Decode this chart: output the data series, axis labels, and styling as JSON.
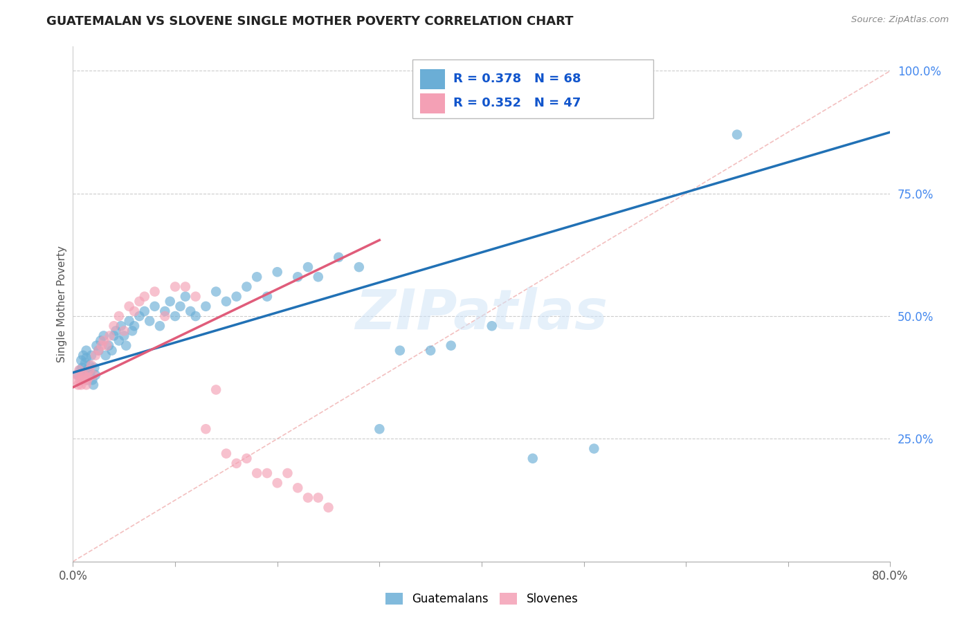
{
  "title": "GUATEMALAN VS SLOVENE SINGLE MOTHER POVERTY CORRELATION CHART",
  "source": "Source: ZipAtlas.com",
  "ylabel": "Single Mother Poverty",
  "xlim": [
    0.0,
    0.8
  ],
  "ylim": [
    0.0,
    1.05
  ],
  "xticks": [
    0.0,
    0.1,
    0.2,
    0.3,
    0.4,
    0.5,
    0.6,
    0.7,
    0.8
  ],
  "xtick_labels": [
    "0.0%",
    "",
    "",
    "",
    "",
    "",
    "",
    "",
    "80.0%"
  ],
  "ytick_labels_right": [
    "25.0%",
    "50.0%",
    "75.0%",
    "100.0%"
  ],
  "yticks_right": [
    0.25,
    0.5,
    0.75,
    1.0
  ],
  "r_guatemalan": 0.378,
  "n_guatemalan": 68,
  "r_slovene": 0.352,
  "n_slovene": 47,
  "color_guatemalan": "#6baed6",
  "color_slovene": "#f4a0b5",
  "color_trend_guatemalan": "#2171b5",
  "color_trend_slovene": "#e05c7a",
  "background_color": "#ffffff",
  "grid_color": "#cccccc",
  "legend_label_guatemalan": "Guatemalans",
  "legend_label_slovene": "Slovenes",
  "diag_line_color": "#f0b0b0",
  "watermark_color": "#d0e4f7",
  "blue_trend_x0": 0.0,
  "blue_trend_y0": 0.385,
  "blue_trend_x1": 0.8,
  "blue_trend_y1": 0.875,
  "pink_trend_x0": 0.0,
  "pink_trend_y0": 0.355,
  "pink_trend_x1": 0.3,
  "pink_trend_y1": 0.655,
  "guat_x": [
    0.005,
    0.007,
    0.008,
    0.009,
    0.01,
    0.01,
    0.011,
    0.012,
    0.013,
    0.013,
    0.014,
    0.015,
    0.016,
    0.017,
    0.018,
    0.019,
    0.02,
    0.021,
    0.022,
    0.023,
    0.025,
    0.027,
    0.03,
    0.032,
    0.035,
    0.038,
    0.04,
    0.042,
    0.045,
    0.047,
    0.05,
    0.052,
    0.055,
    0.058,
    0.06,
    0.065,
    0.07,
    0.075,
    0.08,
    0.085,
    0.09,
    0.095,
    0.1,
    0.105,
    0.11,
    0.115,
    0.12,
    0.13,
    0.14,
    0.15,
    0.16,
    0.17,
    0.18,
    0.19,
    0.2,
    0.22,
    0.23,
    0.24,
    0.26,
    0.28,
    0.3,
    0.32,
    0.35,
    0.37,
    0.41,
    0.45,
    0.51,
    0.65
  ],
  "guat_y": [
    0.38,
    0.39,
    0.41,
    0.395,
    0.385,
    0.42,
    0.375,
    0.405,
    0.415,
    0.43,
    0.37,
    0.39,
    0.4,
    0.38,
    0.42,
    0.37,
    0.36,
    0.395,
    0.38,
    0.44,
    0.43,
    0.45,
    0.46,
    0.42,
    0.44,
    0.43,
    0.46,
    0.47,
    0.45,
    0.48,
    0.46,
    0.44,
    0.49,
    0.47,
    0.48,
    0.5,
    0.51,
    0.49,
    0.52,
    0.48,
    0.51,
    0.53,
    0.5,
    0.52,
    0.54,
    0.51,
    0.5,
    0.52,
    0.55,
    0.53,
    0.54,
    0.56,
    0.58,
    0.54,
    0.59,
    0.58,
    0.6,
    0.58,
    0.62,
    0.6,
    0.27,
    0.43,
    0.43,
    0.44,
    0.48,
    0.21,
    0.23,
    0.87
  ],
  "slov_x": [
    0.003,
    0.004,
    0.005,
    0.006,
    0.007,
    0.008,
    0.009,
    0.01,
    0.011,
    0.012,
    0.013,
    0.014,
    0.015,
    0.016,
    0.018,
    0.02,
    0.022,
    0.025,
    0.028,
    0.03,
    0.033,
    0.036,
    0.04,
    0.045,
    0.05,
    0.055,
    0.06,
    0.065,
    0.07,
    0.08,
    0.09,
    0.1,
    0.11,
    0.12,
    0.13,
    0.14,
    0.15,
    0.16,
    0.17,
    0.18,
    0.19,
    0.2,
    0.21,
    0.22,
    0.23,
    0.24,
    0.25
  ],
  "slov_y": [
    0.37,
    0.38,
    0.36,
    0.39,
    0.37,
    0.36,
    0.38,
    0.37,
    0.38,
    0.375,
    0.36,
    0.37,
    0.375,
    0.39,
    0.4,
    0.38,
    0.42,
    0.43,
    0.44,
    0.45,
    0.44,
    0.46,
    0.48,
    0.5,
    0.47,
    0.52,
    0.51,
    0.53,
    0.54,
    0.55,
    0.5,
    0.56,
    0.56,
    0.54,
    0.27,
    0.35,
    0.22,
    0.2,
    0.21,
    0.18,
    0.18,
    0.16,
    0.18,
    0.15,
    0.13,
    0.13,
    0.11
  ]
}
